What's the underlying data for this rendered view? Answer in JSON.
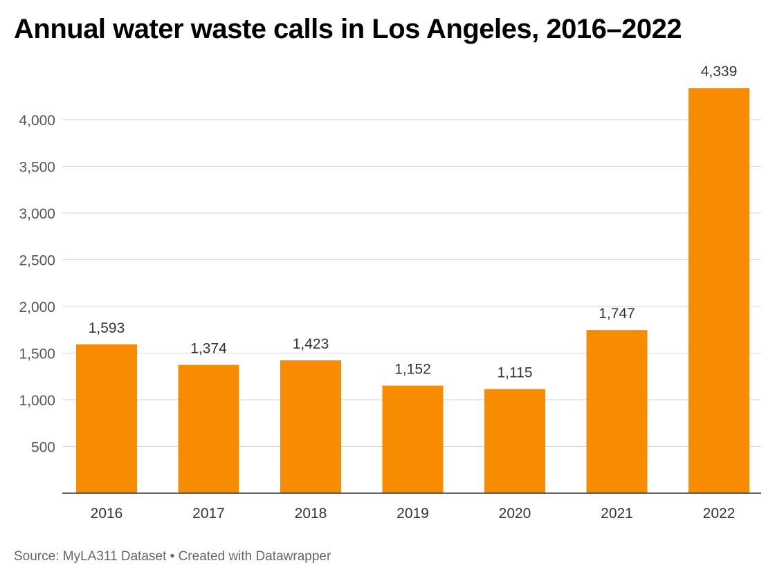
{
  "chart_data": {
    "type": "bar",
    "title": "Annual water waste calls in Los Angeles, 2016–2022",
    "categories": [
      "2016",
      "2017",
      "2018",
      "2019",
      "2020",
      "2021",
      "2022"
    ],
    "values": [
      1593,
      1374,
      1423,
      1152,
      1115,
      1747,
      4339
    ],
    "data_labels": [
      "1,593",
      "1,374",
      "1,423",
      "1,152",
      "1,115",
      "1,747",
      "4,339"
    ],
    "yticks": [
      500,
      1000,
      1500,
      2000,
      2500,
      3000,
      3500,
      4000
    ],
    "ytick_labels": [
      "500",
      "1,000",
      "1,500",
      "2,000",
      "2,500",
      "3,000",
      "3,500",
      "4,000"
    ],
    "ylim": [
      0,
      4339
    ],
    "xlabel": "",
    "ylabel": "",
    "grid": true,
    "bar_color": "#f78c00",
    "source": "Source: MyLA311 Dataset • Created with Datawrapper"
  }
}
